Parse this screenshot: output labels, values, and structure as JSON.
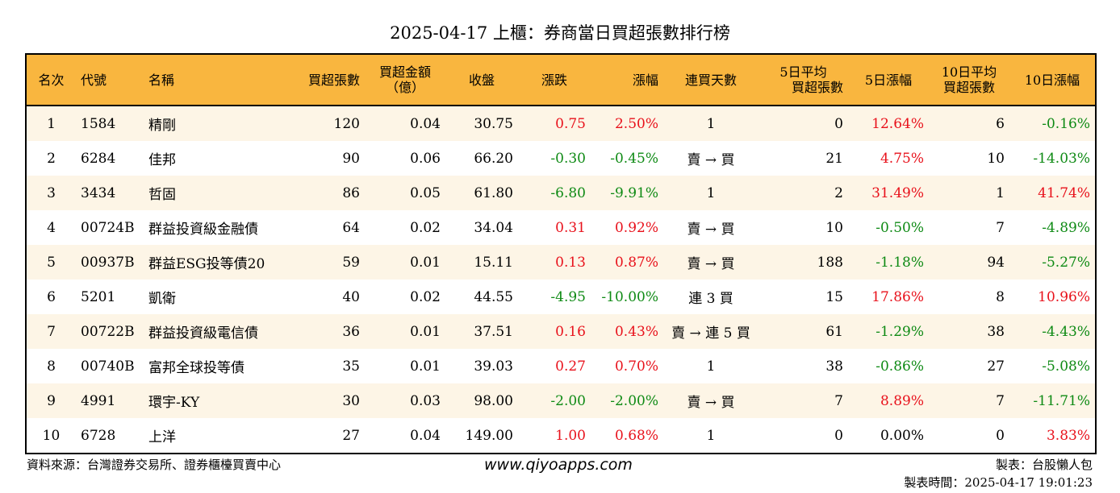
{
  "title": "2025-04-17 上櫃：券商當日買超張數排行榜",
  "headers": {
    "rank": "名次",
    "code": "代號",
    "name": "名稱",
    "buy_sheets": "買超張數",
    "buy_amount_line1": "買超金額",
    "buy_amount_line2": "（億）",
    "close": "收盤",
    "change": "漲跌",
    "change_pct": "漲幅",
    "streak": "連買天數",
    "avg5_line1": "5日平均",
    "avg5_line2": "買超張數",
    "pct5": "5日漲幅",
    "avg10_line1": "10日平均",
    "avg10_line2": "買超張數",
    "pct10": "10日漲幅"
  },
  "rows": [
    {
      "rank": "1",
      "code": "1584",
      "name": "精剛",
      "buy": "120",
      "amount": "0.04",
      "close": "30.75",
      "change": "0.75",
      "change_pct": "2.50%",
      "streak": "1",
      "avg5": "0",
      "pct5": "12.64%",
      "avg10": "6",
      "pct10": "-0.16%"
    },
    {
      "rank": "2",
      "code": "6284",
      "name": "佳邦",
      "buy": "90",
      "amount": "0.06",
      "close": "66.20",
      "change": "-0.30",
      "change_pct": "-0.45%",
      "streak": "賣 → 買",
      "avg5": "21",
      "pct5": "4.75%",
      "avg10": "10",
      "pct10": "-14.03%"
    },
    {
      "rank": "3",
      "code": "3434",
      "name": "哲固",
      "buy": "86",
      "amount": "0.05",
      "close": "61.80",
      "change": "-6.80",
      "change_pct": "-9.91%",
      "streak": "1",
      "avg5": "2",
      "pct5": "31.49%",
      "avg10": "1",
      "pct10": "41.74%"
    },
    {
      "rank": "4",
      "code": "00724B",
      "name": "群益投資級金融債",
      "buy": "64",
      "amount": "0.02",
      "close": "34.04",
      "change": "0.31",
      "change_pct": "0.92%",
      "streak": "賣 → 買",
      "avg5": "10",
      "pct5": "-0.50%",
      "avg10": "7",
      "pct10": "-4.89%"
    },
    {
      "rank": "5",
      "code": "00937B",
      "name": "群益ESG投等債20",
      "buy": "59",
      "amount": "0.01",
      "close": "15.11",
      "change": "0.13",
      "change_pct": "0.87%",
      "streak": "賣 → 買",
      "avg5": "188",
      "pct5": "-1.18%",
      "avg10": "94",
      "pct10": "-5.27%"
    },
    {
      "rank": "6",
      "code": "5201",
      "name": "凱衛",
      "buy": "40",
      "amount": "0.02",
      "close": "44.55",
      "change": "-4.95",
      "change_pct": "-10.00%",
      "streak": "連 3 買",
      "avg5": "15",
      "pct5": "17.86%",
      "avg10": "8",
      "pct10": "10.96%"
    },
    {
      "rank": "7",
      "code": "00722B",
      "name": "群益投資級電信債",
      "buy": "36",
      "amount": "0.01",
      "close": "37.51",
      "change": "0.16",
      "change_pct": "0.43%",
      "streak": "賣 → 連 5 買",
      "avg5": "61",
      "pct5": "-1.29%",
      "avg10": "38",
      "pct10": "-4.43%"
    },
    {
      "rank": "8",
      "code": "00740B",
      "name": "富邦全球投等債",
      "buy": "35",
      "amount": "0.01",
      "close": "39.03",
      "change": "0.27",
      "change_pct": "0.70%",
      "streak": "1",
      "avg5": "38",
      "pct5": "-0.86%",
      "avg10": "27",
      "pct10": "-5.08%"
    },
    {
      "rank": "9",
      "code": "4991",
      "name": "環宇-KY",
      "buy": "30",
      "amount": "0.03",
      "close": "98.00",
      "change": "-2.00",
      "change_pct": "-2.00%",
      "streak": "賣 → 買",
      "avg5": "7",
      "pct5": "8.89%",
      "avg10": "7",
      "pct10": "-11.71%"
    },
    {
      "rank": "10",
      "code": "6728",
      "name": "上洋",
      "buy": "27",
      "amount": "0.04",
      "close": "149.00",
      "change": "1.00",
      "change_pct": "0.68%",
      "streak": "1",
      "avg5": "0",
      "pct5": "0.00%",
      "avg10": "0",
      "pct10": "3.83%"
    }
  ],
  "footer": {
    "source": "資料來源：台灣證券交易所、證券櫃檯買賣中心",
    "website": "www.qiyoapps.com",
    "author": "製表：台股懶人包",
    "made_time": "製表時間：2025-04-17 19:01:23"
  },
  "colors": {
    "header_bg": "#f9b63f",
    "row_alt_bg": "#fdf5e6",
    "positive": "#e8111b",
    "negative": "#0e8a14",
    "neutral": "#000000"
  }
}
